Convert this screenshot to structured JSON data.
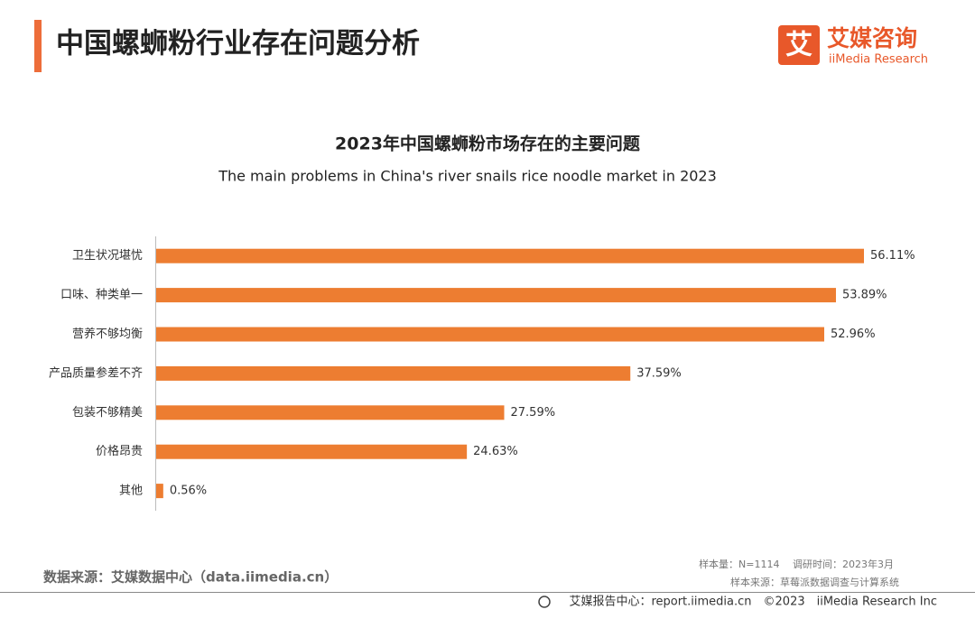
{
  "header": {
    "title": "中国螺蛳粉行业存在问题分析",
    "logo_cn": "艾媒咨询",
    "logo_en": "iiMedia Research",
    "logo_icon": "艾"
  },
  "chart_data": {
    "type": "bar",
    "orientation": "horizontal",
    "title": "2023年中国螺蛳粉市场存在的主要问题",
    "subtitle": "The main problems in China's river snails rice noodle market in 2023",
    "categories": [
      "卫生状况堪忧",
      "口味、种类单一",
      "营养不够均衡",
      "产品质量参差不齐",
      "包装不够精美",
      "价格昂贵",
      "其他"
    ],
    "values": [
      56.11,
      53.89,
      52.96,
      37.59,
      27.59,
      24.63,
      0.56
    ],
    "value_labels": [
      "56.11%",
      "53.89%",
      "52.96%",
      "37.59%",
      "27.59%",
      "24.63%",
      "0.56%"
    ],
    "color": "#ed7d31"
  },
  "notes": {
    "source": "数据来源：艾媒数据中心（data.iimedia.cn）",
    "sample": "样本量：N=1114　 调研时间：2023年3月",
    "sample_source": "样本来源：草莓派数据调查与计算系统",
    "footer": "艾媒报告中心：report.iimedia.cn　©2023　iiMedia Research Inc"
  }
}
